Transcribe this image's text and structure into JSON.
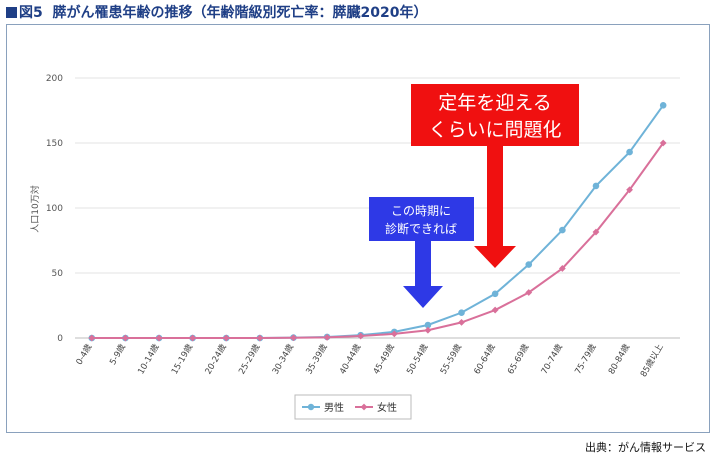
{
  "header": {
    "title_prefix": "図5",
    "title_text": "膵がん罹患年齢の推移（年齢階級別死亡率：膵臓2020年）"
  },
  "footer": {
    "source": "出典：がん情報サービス"
  },
  "annotations": {
    "red_callout_line1": "定年を迎える",
    "red_callout_line2": "くらいに問題化",
    "blue_callout_line1": "この時期に",
    "blue_callout_line2": "診断できれば"
  },
  "colors": {
    "male": "#6fb3d8",
    "female": "#d9709a",
    "red_callout": "#f01010",
    "blue_callout": "#2e39e6",
    "title": "#1f3f86",
    "frame": "#8aa1bd",
    "grid": "#e3e3e3"
  },
  "chart_data": {
    "type": "line",
    "ylabel": "人口10万対",
    "ylim": [
      0,
      200
    ],
    "yticks": [
      0,
      50,
      100,
      150,
      200
    ],
    "grid": "horizontal",
    "legend_position": "bottom",
    "categories": [
      "0-4歳",
      "5-9歳",
      "10-14歳",
      "15-19歳",
      "20-24歳",
      "25-29歳",
      "30-34歳",
      "35-39歳",
      "40-44歳",
      "45-49歳",
      "50-54歳",
      "55-59歳",
      "60-64歳",
      "65-69歳",
      "70-74歳",
      "75-79歳",
      "80-84歳",
      "85歳以上"
    ],
    "series": [
      {
        "name": "男性",
        "color": "#6fb3d8",
        "values": [
          0,
          0,
          0,
          0,
          0,
          0,
          0.3,
          0.8,
          2.2,
          4.7,
          10,
          19.5,
          34,
          56.5,
          83,
          117,
          143,
          179
        ]
      },
      {
        "name": "女性",
        "color": "#d9709a",
        "values": [
          0,
          0,
          0,
          0,
          0,
          0,
          0.2,
          0.5,
          1.5,
          3.2,
          6,
          12,
          21.5,
          35,
          53.5,
          81.5,
          114,
          150
        ]
      }
    ]
  }
}
